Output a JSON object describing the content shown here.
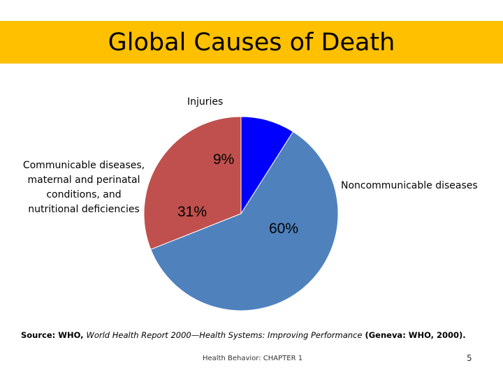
{
  "slide": {
    "title": "Global Causes of Death",
    "title_band_color": "#FFC000",
    "source_prefix": "Source: WHO, ",
    "source_italic_1": "World Health Report 2000—Health Systems: Improving Performance",
    "source_suffix": " (Geneva: WHO, 2000).",
    "footer": "Health Behavior: CHAPTER 1",
    "page_number": "5"
  },
  "chart_data": {
    "type": "pie",
    "categories": [
      "Injuries",
      "Noncommunicable diseases",
      "Communicable diseases, maternal and perinatal conditions, and nutritional deficiencies"
    ],
    "values": [
      9,
      60,
      31
    ],
    "value_labels": [
      "9%",
      "60%",
      "31%"
    ],
    "colors": [
      "#0000FF",
      "#4F81BD",
      "#C0504D"
    ],
    "legend": "none"
  }
}
